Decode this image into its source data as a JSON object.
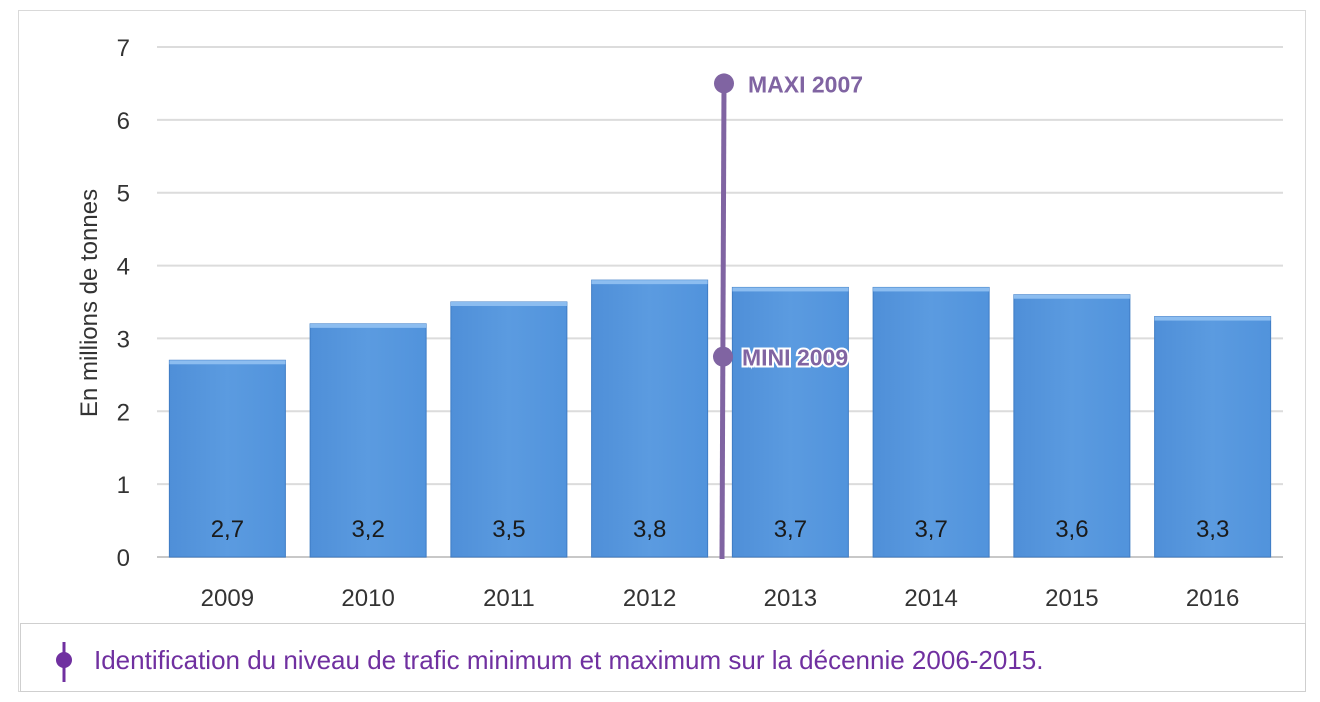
{
  "chart_data": {
    "type": "bar",
    "categories": [
      "2009",
      "2010",
      "2011",
      "2012",
      "2013",
      "2014",
      "2015",
      "2016"
    ],
    "values": [
      2.7,
      3.2,
      3.5,
      3.8,
      3.7,
      3.7,
      3.6,
      3.3
    ],
    "value_labels": [
      "2,7",
      "3,2",
      "3,5",
      "3,8",
      "3,7",
      "3,7",
      "3,6",
      "3,3"
    ],
    "ylabel": "En millions de tonnes",
    "ylim": [
      0,
      7
    ],
    "yticks": [
      0,
      1,
      2,
      3,
      4,
      5,
      6,
      7
    ],
    "grid": true,
    "bar_color": "#5b9be0",
    "bar_edge_color": "#3f7cc4",
    "marker_color": "#8064a2",
    "range_marker": {
      "position_between": [
        "2012",
        "2013"
      ],
      "max": {
        "label": "MAXI 2007",
        "value": 6.5
      },
      "min": {
        "label": "MINI 2009",
        "value": 2.75
      }
    }
  },
  "legend": {
    "text": "Identification du niveau de trafic minimum et maximum sur la décennie 2006-2015.",
    "icon": "range-marker-icon",
    "color": "#7030a0"
  }
}
